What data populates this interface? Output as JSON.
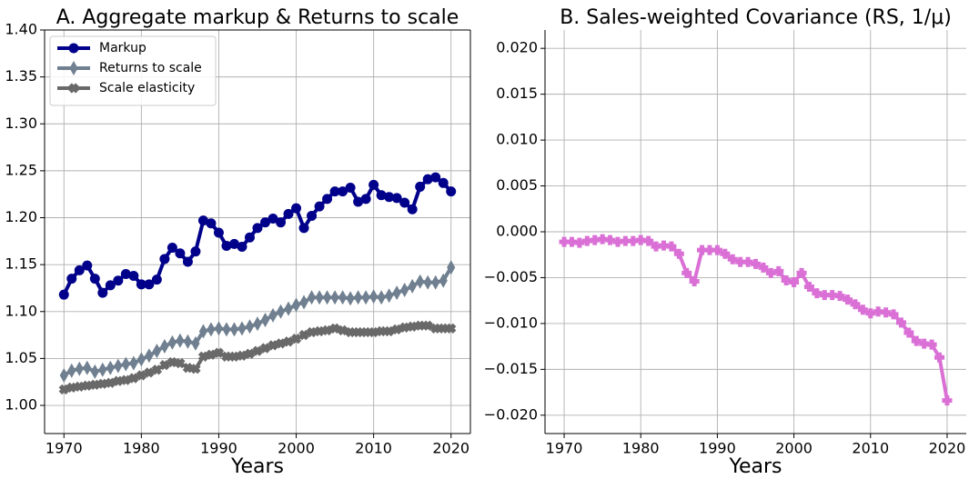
{
  "chart_data": [
    {
      "type": "line",
      "title": "A. Aggregate markup & Returns to scale",
      "x_label": "Years",
      "x": [
        1970,
        1971,
        1972,
        1973,
        1974,
        1975,
        1976,
        1977,
        1978,
        1979,
        1980,
        1981,
        1982,
        1983,
        1984,
        1985,
        1986,
        1987,
        1988,
        1989,
        1990,
        1991,
        1992,
        1993,
        1994,
        1995,
        1996,
        1997,
        1998,
        1999,
        2000,
        2001,
        2002,
        2003,
        2004,
        2005,
        2006,
        2007,
        2008,
        2009,
        2010,
        2011,
        2012,
        2013,
        2014,
        2015,
        2016,
        2017,
        2018,
        2019,
        2020
      ],
      "series": [
        {
          "name": "Markup",
          "color": "#00008b",
          "marker": "o",
          "values": [
            1.118,
            1.135,
            1.144,
            1.149,
            1.135,
            1.12,
            1.128,
            1.133,
            1.14,
            1.138,
            1.129,
            1.129,
            1.134,
            1.156,
            1.168,
            1.162,
            1.153,
            1.164,
            1.197,
            1.194,
            1.184,
            1.17,
            1.172,
            1.169,
            1.179,
            1.189,
            1.195,
            1.199,
            1.195,
            1.204,
            1.21,
            1.189,
            1.202,
            1.212,
            1.22,
            1.228,
            1.228,
            1.232,
            1.217,
            1.22,
            1.235,
            1.224,
            1.222,
            1.221,
            1.216,
            1.209,
            1.233,
            1.241,
            1.243,
            1.237,
            1.228
          ]
        },
        {
          "name": "Returns to scale",
          "color": "#708090",
          "marker": "d",
          "values": [
            1.032,
            1.037,
            1.039,
            1.04,
            1.036,
            1.038,
            1.04,
            1.042,
            1.044,
            1.045,
            1.049,
            1.053,
            1.058,
            1.063,
            1.067,
            1.069,
            1.068,
            1.066,
            1.079,
            1.081,
            1.082,
            1.081,
            1.081,
            1.082,
            1.084,
            1.087,
            1.091,
            1.096,
            1.1,
            1.103,
            1.107,
            1.11,
            1.115,
            1.115,
            1.115,
            1.115,
            1.115,
            1.114,
            1.115,
            1.115,
            1.116,
            1.115,
            1.117,
            1.12,
            1.123,
            1.127,
            1.132,
            1.131,
            1.131,
            1.133,
            1.147
          ]
        },
        {
          "name": "Scale elasticity",
          "color": "#696969",
          "marker": "X",
          "values": [
            1.017,
            1.019,
            1.02,
            1.021,
            1.022,
            1.023,
            1.024,
            1.026,
            1.027,
            1.029,
            1.032,
            1.035,
            1.038,
            1.043,
            1.046,
            1.045,
            1.04,
            1.039,
            1.052,
            1.054,
            1.056,
            1.052,
            1.052,
            1.053,
            1.055,
            1.058,
            1.061,
            1.064,
            1.066,
            1.068,
            1.071,
            1.075,
            1.078,
            1.079,
            1.08,
            1.082,
            1.08,
            1.078,
            1.078,
            1.078,
            1.078,
            1.079,
            1.079,
            1.081,
            1.083,
            1.084,
            1.085,
            1.085,
            1.082,
            1.082,
            1.082
          ]
        }
      ],
      "xlim": [
        1967.5,
        2022.5
      ],
      "xticks": [
        1970,
        1980,
        1990,
        2000,
        2010,
        2020
      ],
      "ylim": [
        0.97,
        1.4
      ],
      "yticks": [
        {
          "value": 1.0,
          "label": "1.00"
        },
        1.05,
        {
          "value": 1.1,
          "label": "1.10"
        },
        1.15,
        {
          "value": 1.2,
          "label": "1.20"
        },
        1.25,
        {
          "value": 1.3,
          "label": "1.30"
        },
        1.35,
        {
          "value": 1.4,
          "label": "1.40"
        }
      ],
      "grid": true,
      "legend": "upper left"
    },
    {
      "type": "line",
      "title": "B. Sales-weighted Covariance (RS, 1/μ)",
      "x_label": "Years",
      "x": [
        1970,
        1971,
        1972,
        1973,
        1974,
        1975,
        1976,
        1977,
        1978,
        1979,
        1980,
        1981,
        1982,
        1983,
        1984,
        1985,
        1986,
        1987,
        1988,
        1989,
        1990,
        1991,
        1992,
        1993,
        1994,
        1995,
        1996,
        1997,
        1998,
        1999,
        2000,
        2001,
        2002,
        2003,
        2004,
        2005,
        2006,
        2007,
        2008,
        2009,
        2010,
        2011,
        2012,
        2013,
        2014,
        2015,
        2016,
        2017,
        2018,
        2019,
        2020
      ],
      "series": [
        {
          "color": "#da70d6",
          "marker": "P",
          "values": [
            -0.0011,
            -0.0011,
            -0.0012,
            -0.001,
            -0.0009,
            -0.0008,
            -0.0009,
            -0.0011,
            -0.001,
            -0.001,
            -0.0009,
            -0.001,
            -0.0016,
            -0.0015,
            -0.0016,
            -0.0024,
            -0.0045,
            -0.0054,
            -0.002,
            -0.002,
            -0.002,
            -0.0024,
            -0.003,
            -0.0033,
            -0.0033,
            -0.0035,
            -0.0039,
            -0.0045,
            -0.0043,
            -0.0053,
            -0.0055,
            -0.0045,
            -0.006,
            -0.0067,
            -0.0069,
            -0.0069,
            -0.007,
            -0.0074,
            -0.0079,
            -0.0085,
            -0.0089,
            -0.0087,
            -0.0088,
            -0.009,
            -0.0099,
            -0.011,
            -0.0119,
            -0.0122,
            -0.0123,
            -0.0137,
            -0.0184
          ]
        }
      ],
      "xlim": [
        1967.5,
        2022.5
      ],
      "xticks": [
        1970,
        1980,
        1990,
        2000,
        2010,
        2020
      ],
      "ylim": [
        -0.022,
        0.022
      ],
      "yticks": [
        {
          "value": -0.02,
          "label": "−0.020"
        },
        {
          "value": -0.015,
          "label": "−0.015"
        },
        {
          "value": -0.01,
          "label": "−0.010"
        },
        {
          "value": -0.005,
          "label": "−0.005"
        },
        {
          "value": 0,
          "label": "0.000"
        },
        0.005,
        {
          "value": 0.01,
          "label": "0.010"
        },
        0.015,
        {
          "value": 0.02,
          "label": "0.020"
        }
      ],
      "grid": true
    }
  ]
}
